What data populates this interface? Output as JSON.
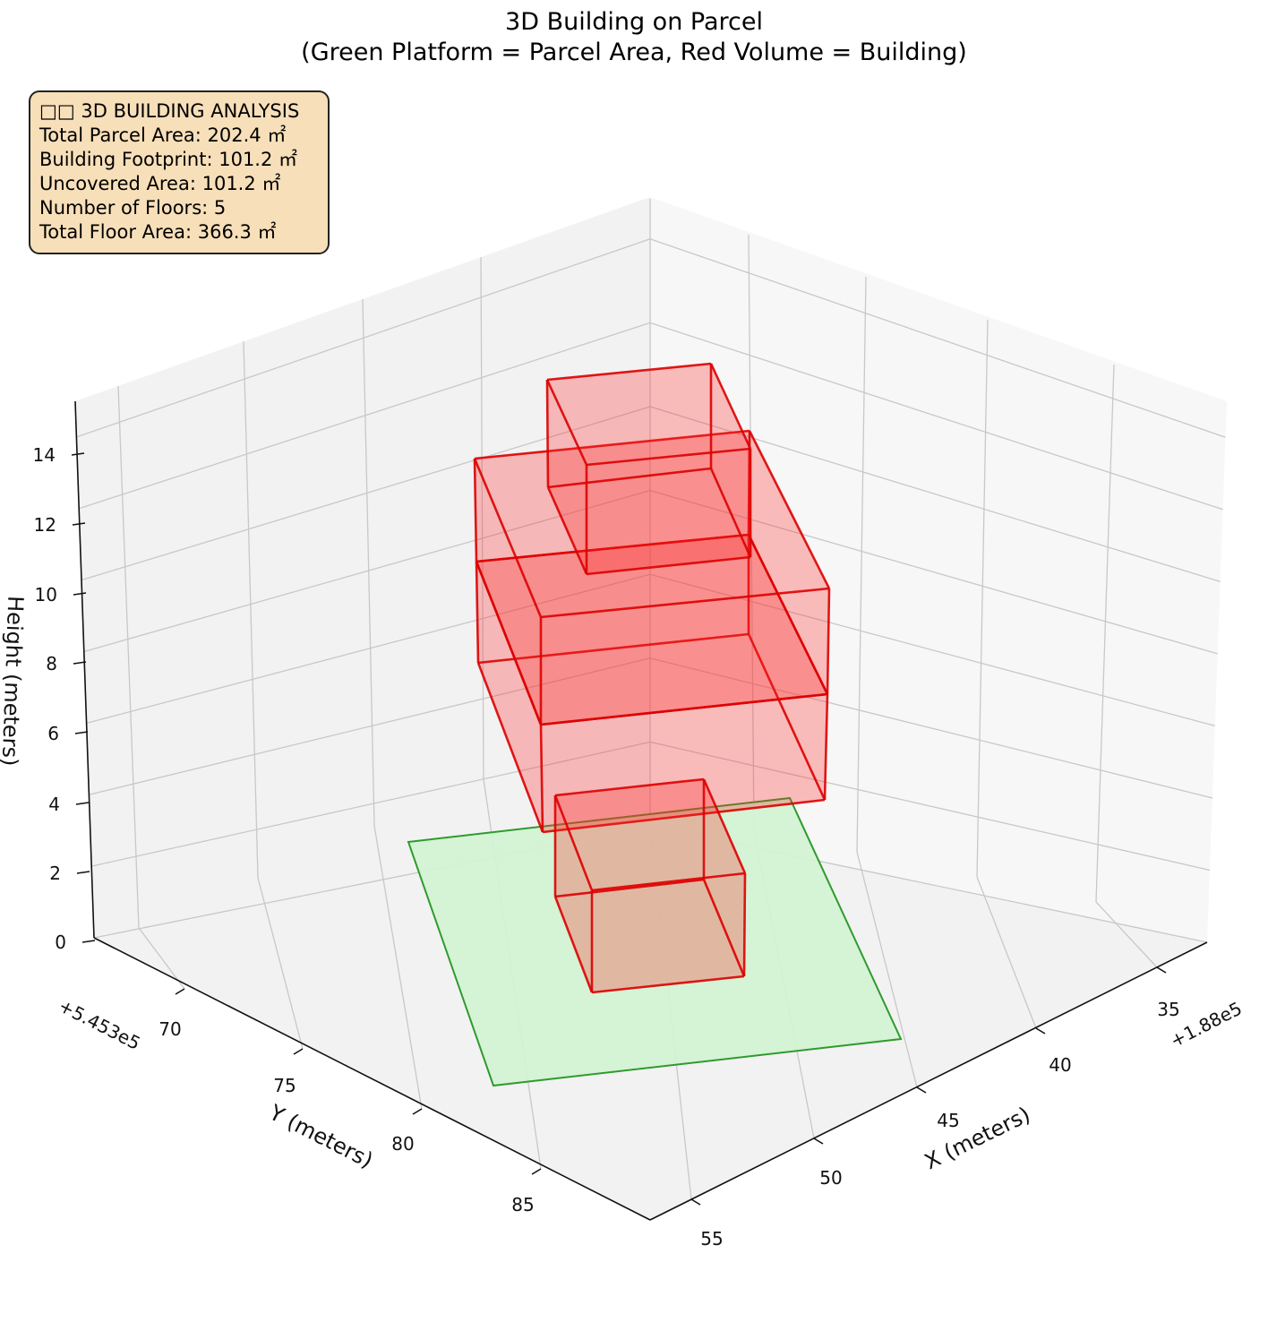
{
  "chart_data": {
    "type": "3d-volume",
    "title": "3D Building on Parcel",
    "subtitle": "(Green Platform = Parcel Area, Red Volume = Building)",
    "xlabel": "X (meters)",
    "ylabel": "Y (meters)",
    "zlabel": "Height (meters)",
    "x_offset_label": "+1.88e5",
    "y_offset_label": "+5.453e5",
    "x_ticks": [
      "35",
      "40",
      "45",
      "50",
      "55"
    ],
    "y_ticks": [
      "70",
      "75",
      "80",
      "85"
    ],
    "z_ticks": [
      "0",
      "2",
      "4",
      "6",
      "8",
      "10",
      "12",
      "14"
    ],
    "zlim": [
      0,
      15
    ],
    "grid": true,
    "colors": {
      "parcel_fill": "#d3f2d3",
      "parcel_edge": "#2e9b2e",
      "building_fill": "#ff2a2a",
      "building_edge": "#dd0000"
    }
  },
  "info_box": {
    "line1": "□□ 3D BUILDING ANALYSIS",
    "line2": "Total Parcel Area: 202.4 ㎡",
    "line3": "Building Footprint: 101.2 ㎡",
    "line4": "Uncovered Area: 101.2 ㎡",
    "line5": "Number of Floors: 5",
    "line6": "Total Floor Area: 366.3 ㎡"
  }
}
